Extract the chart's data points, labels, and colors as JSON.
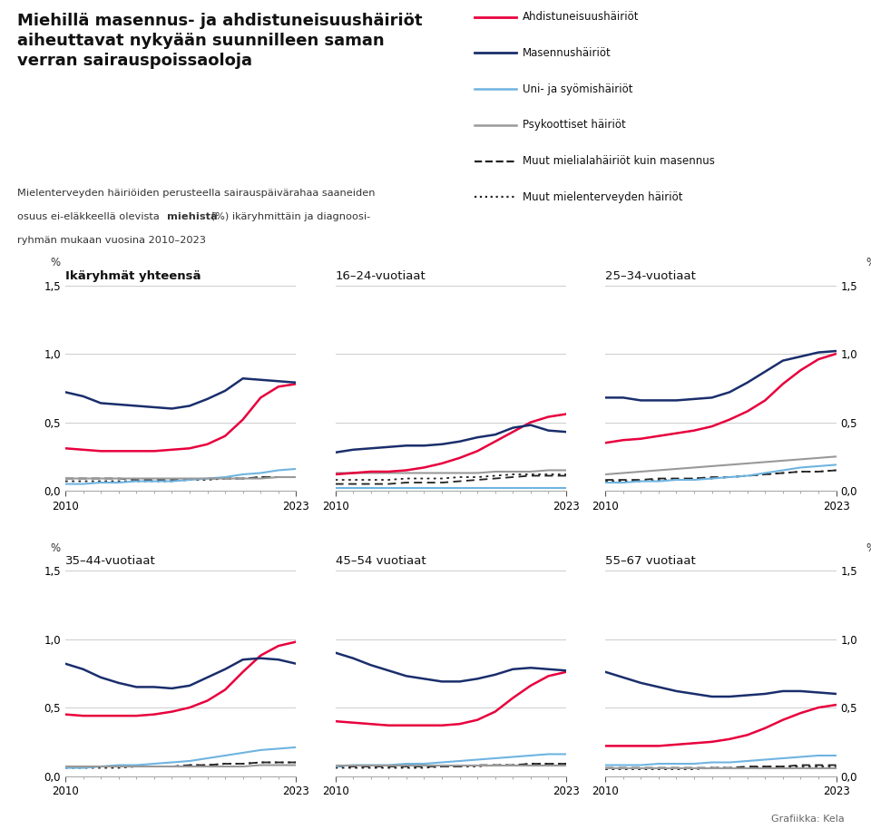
{
  "title": "Miehillä masennus- ja ahdistuneisuushäiriöt\naiheuttavat nykyään suunnilleen saman\nverran sairauspoissaoloja",
  "subtitle_parts": [
    {
      "text": "Mielenterveyden häiriöiden perusteella sairauspäivärahaa saaneiden\nosuus ei-eläkkeellä olevista ",
      "bold": false
    },
    {
      "text": "miehistä",
      "bold": true
    },
    {
      "text": " (%) ikäryhmittäin ja diagnoosi-\nryhmän mukaan vuosina 2010–2023",
      "bold": false
    }
  ],
  "footer": "Grafiikka: Kela",
  "years": [
    2010,
    2011,
    2012,
    2013,
    2014,
    2015,
    2016,
    2017,
    2018,
    2019,
    2020,
    2021,
    2022,
    2023
  ],
  "panels": [
    {
      "title": "Ikäryhmät yhteensä",
      "title_bold": true,
      "ahdistuneisuus": [
        0.31,
        0.3,
        0.29,
        0.29,
        0.29,
        0.29,
        0.3,
        0.31,
        0.34,
        0.4,
        0.52,
        0.68,
        0.76,
        0.78
      ],
      "masennus": [
        0.72,
        0.69,
        0.64,
        0.63,
        0.62,
        0.61,
        0.6,
        0.62,
        0.67,
        0.73,
        0.82,
        0.81,
        0.8,
        0.79
      ],
      "uni_syomis": [
        0.05,
        0.05,
        0.06,
        0.06,
        0.07,
        0.07,
        0.07,
        0.08,
        0.09,
        0.1,
        0.12,
        0.13,
        0.15,
        0.16
      ],
      "psykoottiset": [
        0.09,
        0.09,
        0.09,
        0.09,
        0.09,
        0.09,
        0.09,
        0.09,
        0.09,
        0.09,
        0.09,
        0.09,
        0.1,
        0.1
      ],
      "muut_mieliala": [
        0.09,
        0.09,
        0.09,
        0.09,
        0.08,
        0.08,
        0.08,
        0.08,
        0.09,
        0.09,
        0.09,
        0.1,
        0.1,
        0.1
      ],
      "muut_mt": [
        0.07,
        0.07,
        0.07,
        0.07,
        0.07,
        0.07,
        0.07,
        0.08,
        0.08,
        0.09,
        0.09,
        0.1,
        0.1,
        0.1
      ]
    },
    {
      "title": "16–24-vuotiaat",
      "title_bold": false,
      "ahdistuneisuus": [
        0.12,
        0.13,
        0.14,
        0.14,
        0.15,
        0.17,
        0.2,
        0.24,
        0.29,
        0.36,
        0.43,
        0.5,
        0.54,
        0.56
      ],
      "masennus": [
        0.28,
        0.3,
        0.31,
        0.32,
        0.33,
        0.33,
        0.34,
        0.36,
        0.39,
        0.41,
        0.46,
        0.48,
        0.44,
        0.43
      ],
      "uni_syomis": [
        0.02,
        0.02,
        0.02,
        0.02,
        0.02,
        0.02,
        0.02,
        0.02,
        0.02,
        0.02,
        0.02,
        0.02,
        0.02,
        0.02
      ],
      "psykoottiset": [
        0.13,
        0.13,
        0.13,
        0.13,
        0.13,
        0.13,
        0.13,
        0.13,
        0.13,
        0.14,
        0.14,
        0.14,
        0.15,
        0.15
      ],
      "muut_mieliala": [
        0.05,
        0.05,
        0.05,
        0.05,
        0.06,
        0.06,
        0.06,
        0.07,
        0.08,
        0.09,
        0.1,
        0.11,
        0.11,
        0.11
      ],
      "muut_mt": [
        0.08,
        0.08,
        0.08,
        0.08,
        0.09,
        0.09,
        0.09,
        0.1,
        0.1,
        0.11,
        0.12,
        0.12,
        0.12,
        0.12
      ]
    },
    {
      "title": "25–34-vuotiaat",
      "title_bold": false,
      "ahdistuneisuus": [
        0.35,
        0.37,
        0.38,
        0.4,
        0.42,
        0.44,
        0.47,
        0.52,
        0.58,
        0.66,
        0.78,
        0.88,
        0.96,
        1.0
      ],
      "masennus": [
        0.68,
        0.68,
        0.66,
        0.66,
        0.66,
        0.67,
        0.68,
        0.72,
        0.79,
        0.87,
        0.95,
        0.98,
        1.01,
        1.02
      ],
      "uni_syomis": [
        0.06,
        0.06,
        0.07,
        0.07,
        0.08,
        0.08,
        0.09,
        0.1,
        0.11,
        0.13,
        0.15,
        0.17,
        0.18,
        0.19
      ],
      "psykoottiset": [
        0.12,
        0.13,
        0.14,
        0.15,
        0.16,
        0.17,
        0.18,
        0.19,
        0.2,
        0.21,
        0.22,
        0.23,
        0.24,
        0.25
      ],
      "muut_mieliala": [
        0.08,
        0.08,
        0.08,
        0.09,
        0.09,
        0.09,
        0.1,
        0.1,
        0.11,
        0.12,
        0.13,
        0.14,
        0.14,
        0.15
      ],
      "muut_mt": [
        0.07,
        0.07,
        0.07,
        0.08,
        0.08,
        0.09,
        0.09,
        0.1,
        0.11,
        0.12,
        0.13,
        0.14,
        0.14,
        0.15
      ]
    },
    {
      "title": "35–44-vuotiaat",
      "title_bold": false,
      "ahdistuneisuus": [
        0.45,
        0.44,
        0.44,
        0.44,
        0.44,
        0.45,
        0.47,
        0.5,
        0.55,
        0.63,
        0.76,
        0.88,
        0.95,
        0.98
      ],
      "masennus": [
        0.82,
        0.78,
        0.72,
        0.68,
        0.65,
        0.65,
        0.64,
        0.66,
        0.72,
        0.78,
        0.85,
        0.86,
        0.85,
        0.82
      ],
      "uni_syomis": [
        0.06,
        0.06,
        0.07,
        0.08,
        0.08,
        0.09,
        0.1,
        0.11,
        0.13,
        0.15,
        0.17,
        0.19,
        0.2,
        0.21
      ],
      "psykoottiset": [
        0.07,
        0.07,
        0.07,
        0.07,
        0.07,
        0.07,
        0.07,
        0.07,
        0.07,
        0.07,
        0.07,
        0.08,
        0.08,
        0.08
      ],
      "muut_mieliala": [
        0.07,
        0.07,
        0.07,
        0.07,
        0.07,
        0.07,
        0.07,
        0.08,
        0.08,
        0.09,
        0.09,
        0.1,
        0.1,
        0.1
      ],
      "muut_mt": [
        0.06,
        0.06,
        0.06,
        0.06,
        0.07,
        0.07,
        0.07,
        0.08,
        0.08,
        0.09,
        0.09,
        0.1,
        0.1,
        0.1
      ]
    },
    {
      "title": "45–54 vuotiaat",
      "title_bold": false,
      "ahdistuneisuus": [
        0.4,
        0.39,
        0.38,
        0.37,
        0.37,
        0.37,
        0.37,
        0.38,
        0.41,
        0.47,
        0.57,
        0.66,
        0.73,
        0.76
      ],
      "masennus": [
        0.9,
        0.86,
        0.81,
        0.77,
        0.73,
        0.71,
        0.69,
        0.69,
        0.71,
        0.74,
        0.78,
        0.79,
        0.78,
        0.77
      ],
      "uni_syomis": [
        0.07,
        0.08,
        0.08,
        0.08,
        0.09,
        0.09,
        0.1,
        0.11,
        0.12,
        0.13,
        0.14,
        0.15,
        0.16,
        0.16
      ],
      "psykoottiset": [
        0.08,
        0.08,
        0.08,
        0.08,
        0.08,
        0.08,
        0.08,
        0.08,
        0.08,
        0.08,
        0.08,
        0.08,
        0.08,
        0.08
      ],
      "muut_mieliala": [
        0.07,
        0.07,
        0.07,
        0.07,
        0.07,
        0.07,
        0.07,
        0.07,
        0.08,
        0.08,
        0.08,
        0.09,
        0.09,
        0.09
      ],
      "muut_mt": [
        0.06,
        0.06,
        0.06,
        0.06,
        0.06,
        0.06,
        0.07,
        0.07,
        0.07,
        0.08,
        0.08,
        0.09,
        0.09,
        0.09
      ]
    },
    {
      "title": "55–67 vuotiaat",
      "title_bold": false,
      "ahdistuneisuus": [
        0.22,
        0.22,
        0.22,
        0.22,
        0.23,
        0.24,
        0.25,
        0.27,
        0.3,
        0.35,
        0.41,
        0.46,
        0.5,
        0.52
      ],
      "masennus": [
        0.76,
        0.72,
        0.68,
        0.65,
        0.62,
        0.6,
        0.58,
        0.58,
        0.59,
        0.6,
        0.62,
        0.62,
        0.61,
        0.6
      ],
      "uni_syomis": [
        0.08,
        0.08,
        0.08,
        0.09,
        0.09,
        0.09,
        0.1,
        0.1,
        0.11,
        0.12,
        0.13,
        0.14,
        0.15,
        0.15
      ],
      "psykoottiset": [
        0.06,
        0.06,
        0.06,
        0.06,
        0.06,
        0.06,
        0.06,
        0.06,
        0.06,
        0.06,
        0.06,
        0.06,
        0.06,
        0.06
      ],
      "muut_mieliala": [
        0.06,
        0.06,
        0.06,
        0.06,
        0.06,
        0.06,
        0.06,
        0.06,
        0.07,
        0.07,
        0.07,
        0.08,
        0.08,
        0.08
      ],
      "muut_mt": [
        0.05,
        0.05,
        0.05,
        0.05,
        0.05,
        0.05,
        0.06,
        0.06,
        0.06,
        0.07,
        0.07,
        0.07,
        0.07,
        0.07
      ]
    }
  ],
  "colors": {
    "ahdistuneisuus": "#e8003d",
    "masennus": "#1a2e6c",
    "uni_syomis": "#6eb4e0",
    "psykoottiset": "#999999",
    "muut_mieliala": "#222222",
    "muut_mt": "#222222"
  },
  "ylim": [
    0,
    1.5
  ],
  "yticks": [
    0.0,
    0.5,
    1.0,
    1.5
  ],
  "background_color": "#ffffff"
}
